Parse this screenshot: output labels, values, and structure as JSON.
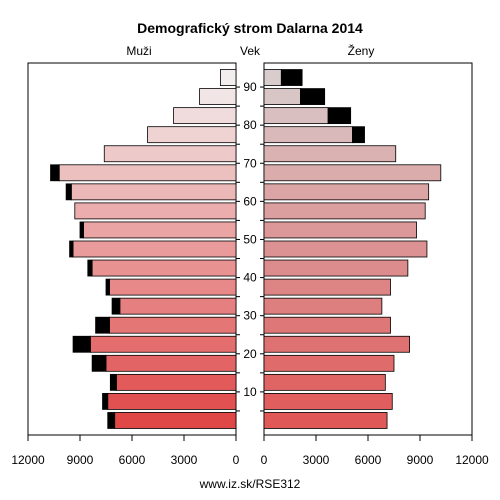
{
  "chart_data": {
    "type": "bar",
    "title": "Demografický strom Dalarna 2014",
    "left_label": "Muži",
    "center_label": "Vek",
    "right_label": "Ženy",
    "footer": "www.iz.sk/RSE312",
    "xlim": [
      0,
      12000
    ],
    "x_ticks": [
      0,
      3000,
      6000,
      9000,
      12000
    ],
    "x_tick_labels_left": [
      "12000",
      "9000",
      "6000",
      "3000",
      "0"
    ],
    "x_tick_labels_right": [
      "0",
      "3000",
      "6000",
      "9000",
      "12000"
    ],
    "age_tick_labels": [
      "10",
      "20",
      "30",
      "40",
      "50",
      "60",
      "70",
      "80",
      "90"
    ],
    "age_groups": [
      "0-4",
      "5-9",
      "10-14",
      "15-19",
      "20-24",
      "25-29",
      "30-34",
      "35-39",
      "40-44",
      "45-49",
      "50-54",
      "55-59",
      "60-64",
      "65-69",
      "70-74",
      "75-79",
      "80-84",
      "85-89",
      "90+"
    ],
    "series": [
      {
        "name": "Muži",
        "values": [
          7000,
          7400,
          6900,
          7500,
          8400,
          7300,
          6700,
          7300,
          8300,
          9400,
          8800,
          9300,
          9500,
          10200,
          7600,
          5100,
          3600,
          2100,
          900
        ]
      },
      {
        "name": "Muži extra",
        "values": [
          400,
          300,
          350,
          800,
          1000,
          800,
          450,
          200,
          250,
          200,
          200,
          0,
          300,
          500,
          0,
          0,
          0,
          0,
          0
        ]
      },
      {
        "name": "Ženy",
        "values": [
          7100,
          7400,
          7000,
          7500,
          8400,
          7300,
          6800,
          7300,
          8300,
          9400,
          8800,
          9300,
          9500,
          10200,
          7600,
          5100,
          3700,
          2100,
          1000
        ]
      },
      {
        "name": "Ženy extra",
        "values": [
          0,
          0,
          0,
          0,
          0,
          0,
          0,
          0,
          0,
          0,
          0,
          0,
          0,
          0,
          0,
          700,
          1300,
          1400,
          1200
        ]
      }
    ],
    "colors": {
      "male_young": "#e04848",
      "male_old": "#f2eeee",
      "female_young": "#e05858",
      "female_old": "#d8cccc",
      "surplus": "#000000",
      "outline": "#000000"
    }
  }
}
